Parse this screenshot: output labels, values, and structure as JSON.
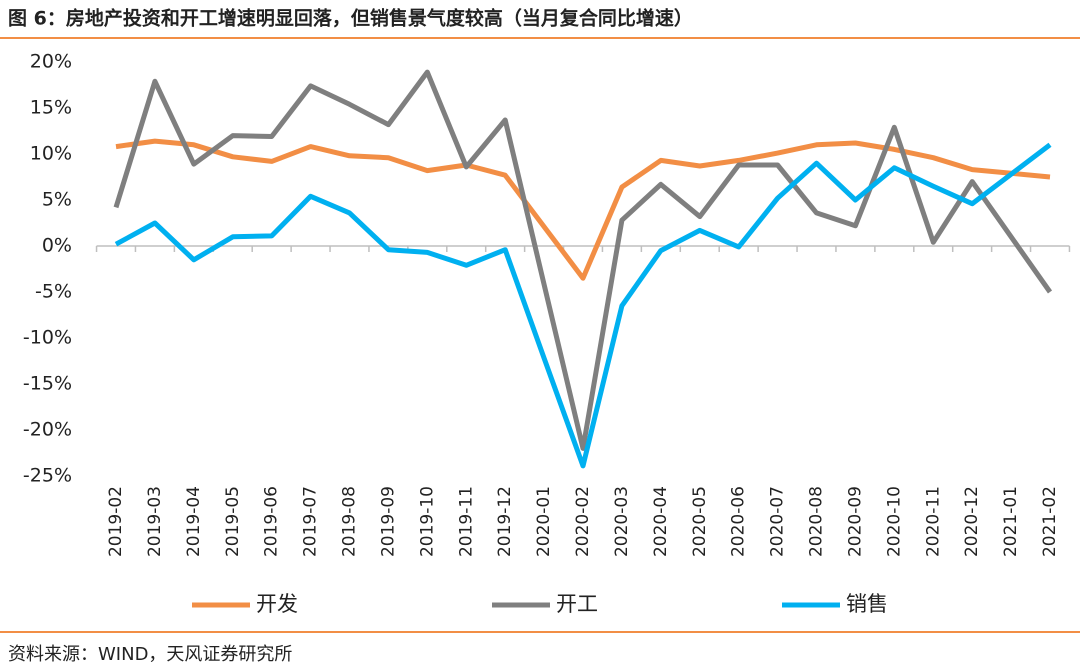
{
  "chart_data": {
    "type": "line",
    "title": "图 6：房地产投资和开工增速明显回落，但销售景气度较高（当月复合同比增速）",
    "source": "资料来源：WIND，天风证券研究所",
    "categories": [
      "2019-02",
      "2019-03",
      "2019-04",
      "2019-05",
      "2019-06",
      "2019-07",
      "2019-08",
      "2019-09",
      "2019-10",
      "2019-11",
      "2019-12",
      "2020-01",
      "2020-02",
      "2020-03",
      "2020-04",
      "2020-05",
      "2020-06",
      "2020-07",
      "2020-08",
      "2020-09",
      "2020-10",
      "2020-11",
      "2020-12",
      "2021-01",
      "2021-02"
    ],
    "series": [
      {
        "name": "开发",
        "color": "#f28e45",
        "values": [
          10.8,
          11.4,
          11.0,
          9.7,
          9.2,
          10.8,
          9.8,
          9.6,
          8.2,
          8.8,
          7.7,
          2.1,
          -3.5,
          6.4,
          9.3,
          8.7,
          9.3,
          10.1,
          11.0,
          11.2,
          10.5,
          9.6,
          8.3,
          7.9,
          7.5
        ]
      },
      {
        "name": "开工",
        "color": "#7f7f7f",
        "values": [
          4.2,
          17.9,
          8.9,
          12.0,
          11.9,
          17.4,
          15.4,
          13.2,
          18.9,
          8.6,
          13.7,
          -4.2,
          -22.0,
          2.8,
          6.7,
          3.2,
          8.8,
          8.8,
          3.6,
          2.2,
          12.9,
          0.4,
          7.0,
          1.0,
          -5.0
        ]
      },
      {
        "name": "销售",
        "color": "#00b0f0",
        "values": [
          0.2,
          2.5,
          -1.5,
          1.0,
          1.1,
          5.4,
          3.6,
          -0.4,
          -0.7,
          -2.1,
          -0.4,
          -12.2,
          -23.9,
          -6.5,
          -0.5,
          1.7,
          -0.1,
          5.2,
          9.0,
          5.0,
          8.5,
          6.5,
          4.6,
          7.8,
          11.0
        ]
      }
    ],
    "ylim": [
      -25,
      20
    ],
    "yticks": [
      {
        "value": -25,
        "label": "-25%"
      },
      {
        "value": -20,
        "label": "-20%"
      },
      {
        "value": -15,
        "label": "-15%"
      },
      {
        "value": -10,
        "label": "-10%"
      },
      {
        "value": -5,
        "label": "-5%"
      },
      {
        "value": 0,
        "label": "0%"
      },
      {
        "value": 5,
        "label": "5%"
      },
      {
        "value": 10,
        "label": "10%"
      },
      {
        "value": 15,
        "label": "15%"
      },
      {
        "value": 20,
        "label": "20%"
      }
    ],
    "grid": false,
    "legend": "bottom"
  }
}
